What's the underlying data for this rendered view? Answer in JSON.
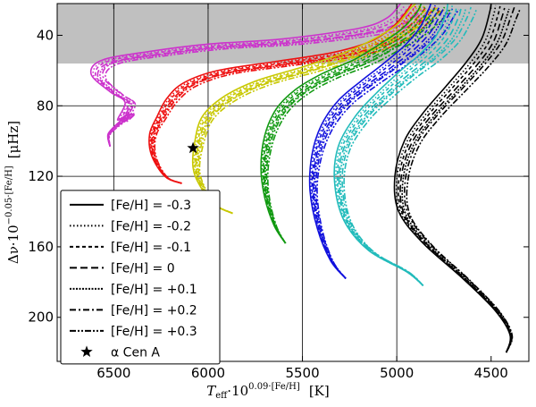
{
  "chart_data": {
    "type": "line",
    "xlabel_sym": "T",
    "xlabel_sub": "eff",
    "xlabel_mid": "·10",
    "xlabel_sup": "0.09·[Fe/H]",
    "xlabel_unit": "[K]",
    "ylabel_main": "Δν·10",
    "ylabel_sup": "−0.05·[Fe/H]",
    "ylabel_unit": "[μHz]",
    "xlim": [
      6800,
      4300
    ],
    "ylim": [
      225,
      22
    ],
    "x_ticks": [
      6500,
      6000,
      5500,
      5000,
      4500
    ],
    "y_ticks": [
      40,
      80,
      120,
      160,
      200
    ],
    "x_gridlines": [
      6500,
      6000,
      5500,
      5000
    ],
    "y_gridlines": [
      80,
      120
    ],
    "shaded_band_y": [
      22,
      56
    ],
    "shaded_color": "#c0c0c0",
    "x_tick_labels": [
      "6500",
      "6000",
      "5500",
      "5000",
      "4500"
    ],
    "y_tick_labels": [
      "40",
      "80",
      "120",
      "160",
      "200"
    ],
    "legend_placement": "lower-left",
    "legend": [
      {
        "label": "[Fe/H] = -0.3",
        "dash": "solid"
      },
      {
        "label": "[Fe/H] = -0.2",
        "dash": "dotted"
      },
      {
        "label": "[Fe/H] = -0.1",
        "dash": "dashed"
      },
      {
        "label": "[Fe/H] = 0",
        "dash": "longdash"
      },
      {
        "label": "[Fe/H] = +0.1",
        "dash": "densedot"
      },
      {
        "label": "[Fe/H] = +0.2",
        "dash": "dashdot"
      },
      {
        "label": "[Fe/H] = +0.3",
        "dash": "dashdotdot"
      },
      {
        "label": "α Cen A",
        "marker": "star"
      }
    ],
    "marker": {
      "x": 6080,
      "y": 104
    },
    "tracks": [
      {
        "color": "#cc33cc",
        "points": [
          [
            6520,
            103
          ],
          [
            6530,
            96
          ],
          [
            6470,
            89
          ],
          [
            6420,
            84
          ],
          [
            6480,
            88
          ],
          [
            6440,
            78
          ],
          [
            6520,
            72
          ],
          [
            6620,
            62
          ],
          [
            6560,
            54
          ],
          [
            6300,
            49
          ],
          [
            6000,
            45
          ],
          [
            5600,
            42
          ],
          [
            5200,
            36
          ],
          [
            5050,
            30
          ],
          [
            4980,
            22
          ]
        ]
      },
      {
        "color": "#ee1111",
        "points": [
          [
            6140,
            124
          ],
          [
            6230,
            120
          ],
          [
            6300,
            108
          ],
          [
            6310,
            96
          ],
          [
            6270,
            86
          ],
          [
            6220,
            76
          ],
          [
            6130,
            67
          ],
          [
            5950,
            60
          ],
          [
            5650,
            55
          ],
          [
            5350,
            50
          ],
          [
            5150,
            44
          ],
          [
            5030,
            36
          ],
          [
            4960,
            28
          ],
          [
            4920,
            22
          ]
        ]
      },
      {
        "color": "#c8c800",
        "points": [
          [
            5870,
            141
          ],
          [
            5970,
            136
          ],
          [
            6040,
            126
          ],
          [
            6080,
            115
          ],
          [
            6070,
            100
          ],
          [
            6030,
            86
          ],
          [
            5920,
            75
          ],
          [
            5750,
            66
          ],
          [
            5500,
            58
          ],
          [
            5280,
            50
          ],
          [
            5120,
            42
          ],
          [
            5000,
            34
          ],
          [
            4930,
            25
          ],
          [
            4900,
            22
          ]
        ]
      },
      {
        "color": "#119911",
        "points": [
          [
            5590,
            158
          ],
          [
            5650,
            148
          ],
          [
            5700,
            132
          ],
          [
            5720,
            115
          ],
          [
            5700,
            97
          ],
          [
            5640,
            82
          ],
          [
            5540,
            71
          ],
          [
            5400,
            62
          ],
          [
            5230,
            54
          ],
          [
            5090,
            45
          ],
          [
            4980,
            37
          ],
          [
            4900,
            28
          ],
          [
            4870,
            22
          ]
        ]
      },
      {
        "color": "#1111dd",
        "points": [
          [
            5270,
            178
          ],
          [
            5350,
            168
          ],
          [
            5420,
            150
          ],
          [
            5460,
            128
          ],
          [
            5450,
            108
          ],
          [
            5400,
            91
          ],
          [
            5310,
            77
          ],
          [
            5190,
            66
          ],
          [
            5070,
            56
          ],
          [
            4960,
            46
          ],
          [
            4880,
            36
          ],
          [
            4830,
            25
          ],
          [
            4820,
            22
          ]
        ]
      },
      {
        "color": "#22bbbb",
        "points": [
          [
            4860,
            182
          ],
          [
            4950,
            174
          ],
          [
            5150,
            162
          ],
          [
            5280,
            145
          ],
          [
            5330,
            123
          ],
          [
            5310,
            103
          ],
          [
            5220,
            86
          ],
          [
            5110,
            73
          ],
          [
            4990,
            61
          ],
          [
            4880,
            51
          ],
          [
            4790,
            40
          ],
          [
            4740,
            28
          ],
          [
            4730,
            22
          ]
        ]
      },
      {
        "color": "#000000",
        "points": [
          [
            4420,
            220
          ],
          [
            4400,
            210
          ],
          [
            4480,
            196
          ],
          [
            4650,
            178
          ],
          [
            4860,
            158
          ],
          [
            4990,
            140
          ],
          [
            5010,
            120
          ],
          [
            4960,
            100
          ],
          [
            4860,
            84
          ],
          [
            4740,
            69
          ],
          [
            4630,
            55
          ],
          [
            4550,
            42
          ],
          [
            4510,
            28
          ],
          [
            4500,
            22
          ]
        ]
      }
    ]
  }
}
